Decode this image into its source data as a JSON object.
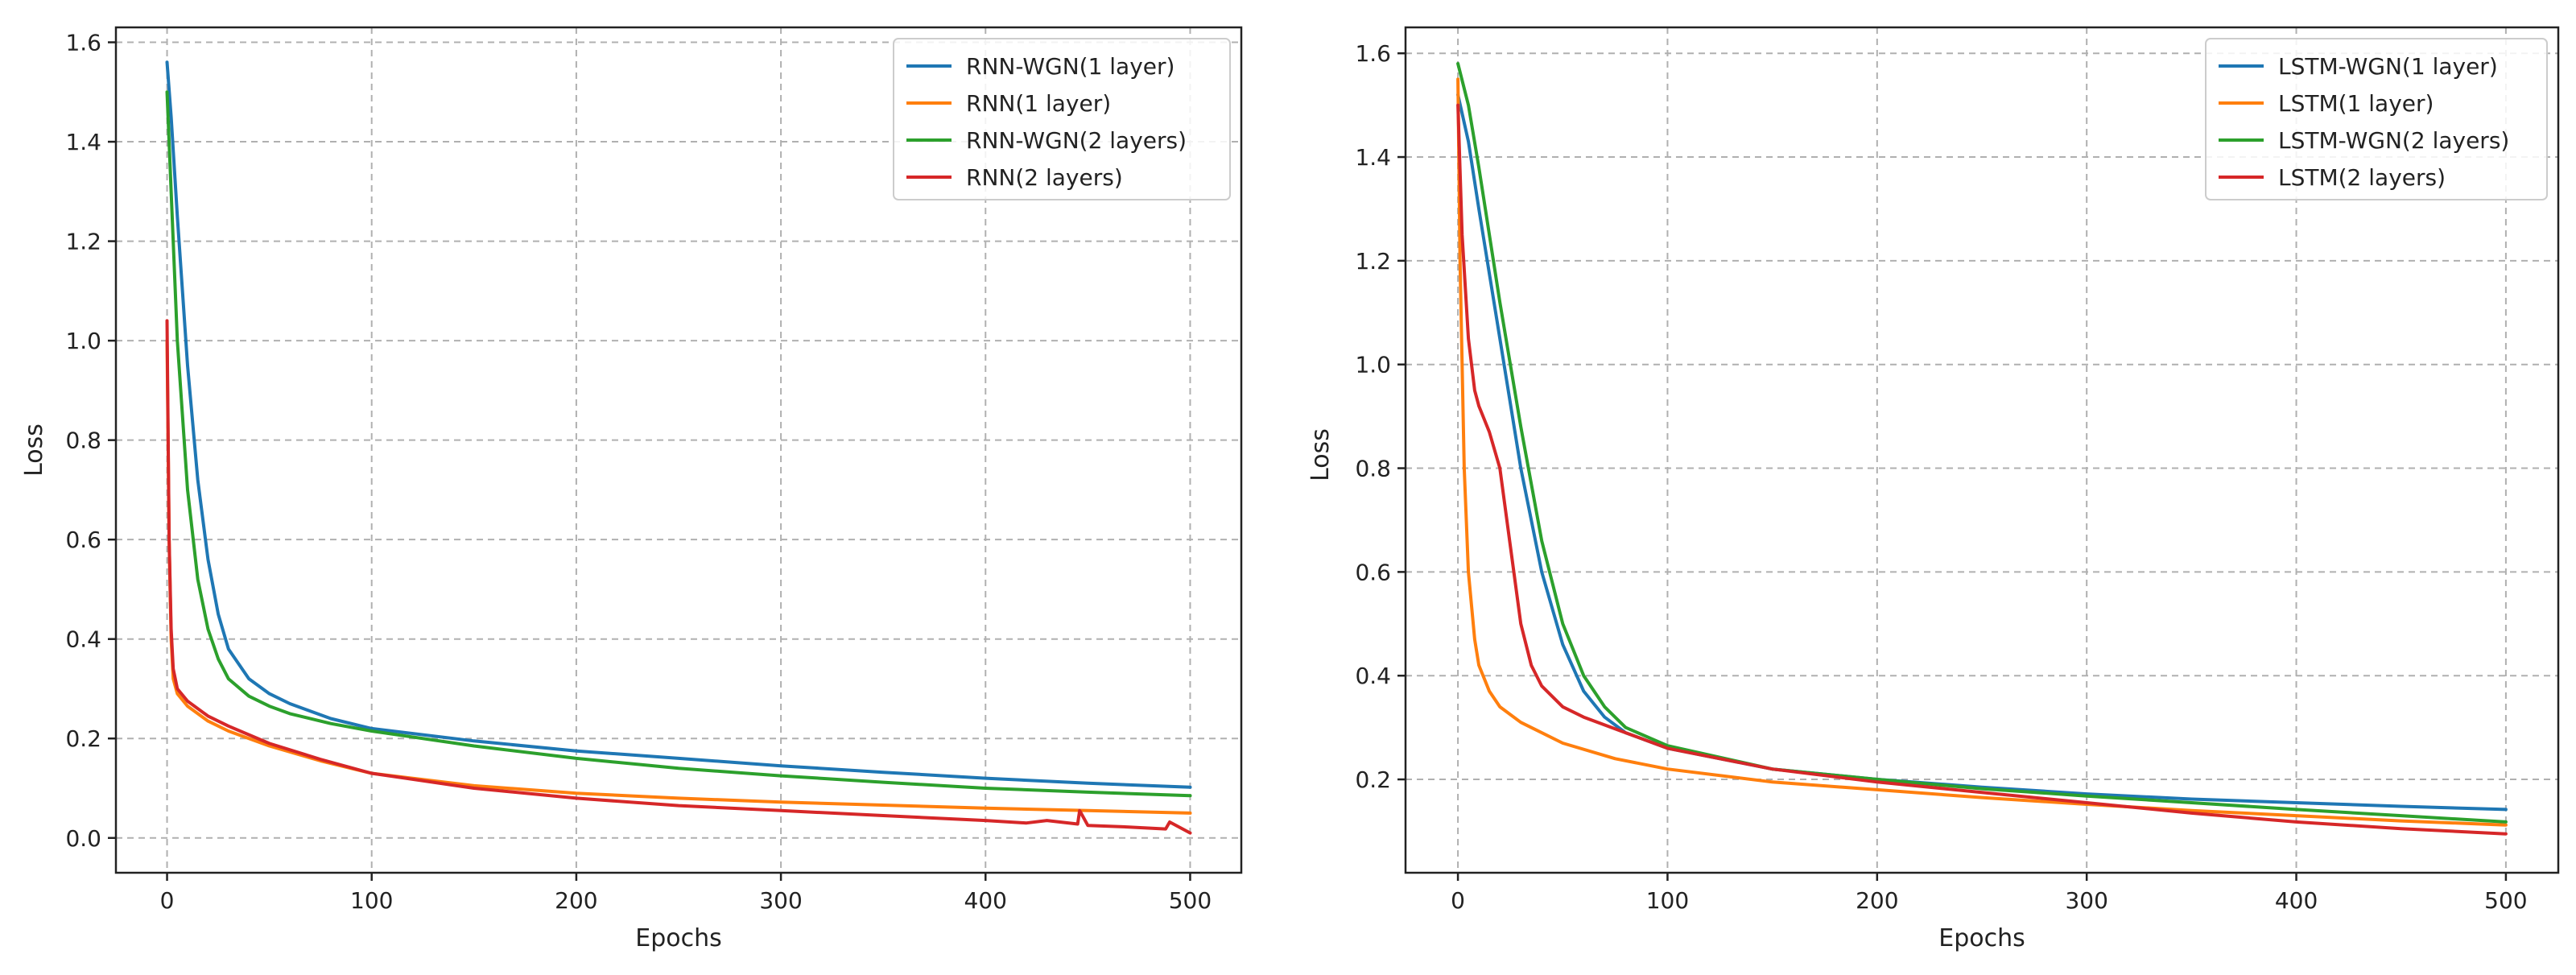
{
  "chart_data": [
    {
      "type": "line",
      "title": "",
      "xlabel": "Epochs",
      "ylabel": "Loss",
      "xlim": [
        -25,
        525
      ],
      "ylim": [
        -0.07,
        1.63
      ],
      "xticks": [
        0,
        100,
        200,
        300,
        400,
        500
      ],
      "yticks": [
        0.0,
        0.2,
        0.4,
        0.6,
        0.8,
        1.0,
        1.2,
        1.4,
        1.6
      ],
      "ytick_labels": [
        "0.0",
        "0.2",
        "0.4",
        "0.6",
        "0.8",
        "1.0",
        "1.2",
        "1.4",
        "1.6"
      ],
      "grid": true,
      "legend_position": "top-right",
      "series": [
        {
          "name": "RNN-WGN(1 layer)",
          "color": "#1f77b4",
          "x": [
            0,
            2,
            5,
            10,
            15,
            20,
            25,
            30,
            40,
            50,
            60,
            80,
            100,
            150,
            200,
            250,
            300,
            350,
            400,
            450,
            500
          ],
          "y": [
            1.56,
            1.45,
            1.25,
            0.95,
            0.72,
            0.56,
            0.45,
            0.38,
            0.32,
            0.29,
            0.27,
            0.24,
            0.22,
            0.195,
            0.175,
            0.16,
            0.145,
            0.132,
            0.12,
            0.11,
            0.102
          ]
        },
        {
          "name": "RNN(1 layer)",
          "color": "#ff7f0e",
          "x": [
            0,
            1,
            2,
            3,
            5,
            10,
            20,
            30,
            50,
            75,
            100,
            150,
            200,
            250,
            300,
            350,
            400,
            450,
            500
          ],
          "y": [
            1.0,
            0.6,
            0.4,
            0.32,
            0.29,
            0.265,
            0.235,
            0.215,
            0.185,
            0.155,
            0.13,
            0.105,
            0.09,
            0.08,
            0.072,
            0.066,
            0.06,
            0.055,
            0.05
          ]
        },
        {
          "name": "RNN-WGN(2 layers)",
          "color": "#2ca02c",
          "x": [
            0,
            2,
            5,
            10,
            15,
            20,
            25,
            30,
            40,
            50,
            60,
            80,
            100,
            150,
            200,
            250,
            300,
            350,
            400,
            450,
            500
          ],
          "y": [
            1.5,
            1.3,
            1.0,
            0.7,
            0.52,
            0.42,
            0.36,
            0.32,
            0.285,
            0.265,
            0.25,
            0.23,
            0.215,
            0.185,
            0.16,
            0.14,
            0.125,
            0.112,
            0.1,
            0.092,
            0.085
          ]
        },
        {
          "name": "RNN(2 layers)",
          "color": "#d62728",
          "x": [
            0,
            1,
            2,
            3,
            5,
            10,
            20,
            30,
            50,
            75,
            100,
            150,
            200,
            250,
            300,
            350,
            400,
            420,
            430,
            445,
            446,
            450,
            470,
            488,
            490,
            500
          ],
          "y": [
            1.04,
            0.6,
            0.42,
            0.34,
            0.3,
            0.275,
            0.245,
            0.225,
            0.19,
            0.158,
            0.13,
            0.1,
            0.08,
            0.065,
            0.055,
            0.045,
            0.035,
            0.03,
            0.035,
            0.028,
            0.055,
            0.025,
            0.022,
            0.018,
            0.032,
            0.01
          ]
        }
      ]
    },
    {
      "type": "line",
      "title": "",
      "xlabel": "Epochs",
      "ylabel": "Loss",
      "xlim": [
        -25,
        525
      ],
      "ylim": [
        0.02,
        1.65
      ],
      "xticks": [
        0,
        100,
        200,
        300,
        400,
        500
      ],
      "yticks": [
        0.2,
        0.4,
        0.6,
        0.8,
        1.0,
        1.2,
        1.4,
        1.6
      ],
      "ytick_labels": [
        "0.2",
        "0.4",
        "0.6",
        "0.8",
        "1.0",
        "1.2",
        "1.4",
        "1.6"
      ],
      "grid": true,
      "legend_position": "top-right",
      "series": [
        {
          "name": "LSTM-WGN(1 layer)",
          "color": "#1f77b4",
          "x": [
            0,
            5,
            10,
            20,
            30,
            40,
            50,
            60,
            70,
            80,
            100,
            150,
            200,
            250,
            300,
            350,
            400,
            450,
            500
          ],
          "y": [
            1.52,
            1.43,
            1.3,
            1.05,
            0.8,
            0.6,
            0.46,
            0.37,
            0.32,
            0.29,
            0.26,
            0.22,
            0.2,
            0.185,
            0.172,
            0.162,
            0.155,
            0.148,
            0.142
          ]
        },
        {
          "name": "LSTM(1 layer)",
          "color": "#ff7f0e",
          "x": [
            0,
            1,
            3,
            5,
            8,
            10,
            15,
            20,
            30,
            50,
            75,
            100,
            150,
            200,
            250,
            300,
            350,
            400,
            450,
            500
          ],
          "y": [
            1.55,
            1.2,
            0.8,
            0.6,
            0.47,
            0.42,
            0.37,
            0.34,
            0.31,
            0.27,
            0.24,
            0.22,
            0.195,
            0.18,
            0.165,
            0.152,
            0.14,
            0.13,
            0.12,
            0.112
          ]
        },
        {
          "name": "LSTM-WGN(2 layers)",
          "color": "#2ca02c",
          "x": [
            0,
            5,
            10,
            20,
            30,
            40,
            50,
            60,
            70,
            80,
            100,
            150,
            200,
            250,
            300,
            350,
            400,
            450,
            500
          ],
          "y": [
            1.58,
            1.5,
            1.38,
            1.12,
            0.88,
            0.66,
            0.5,
            0.4,
            0.34,
            0.3,
            0.265,
            0.22,
            0.2,
            0.182,
            0.168,
            0.155,
            0.142,
            0.13,
            0.118
          ]
        },
        {
          "name": "LSTM(2 layers)",
          "color": "#d62728",
          "x": [
            0,
            2,
            5,
            8,
            10,
            15,
            20,
            25,
            30,
            35,
            40,
            50,
            60,
            80,
            100,
            150,
            200,
            250,
            300,
            350,
            400,
            450,
            500
          ],
          "y": [
            1.5,
            1.25,
            1.05,
            0.95,
            0.92,
            0.87,
            0.8,
            0.65,
            0.5,
            0.42,
            0.38,
            0.34,
            0.32,
            0.29,
            0.26,
            0.22,
            0.195,
            0.175,
            0.155,
            0.135,
            0.118,
            0.105,
            0.095
          ]
        }
      ]
    }
  ]
}
